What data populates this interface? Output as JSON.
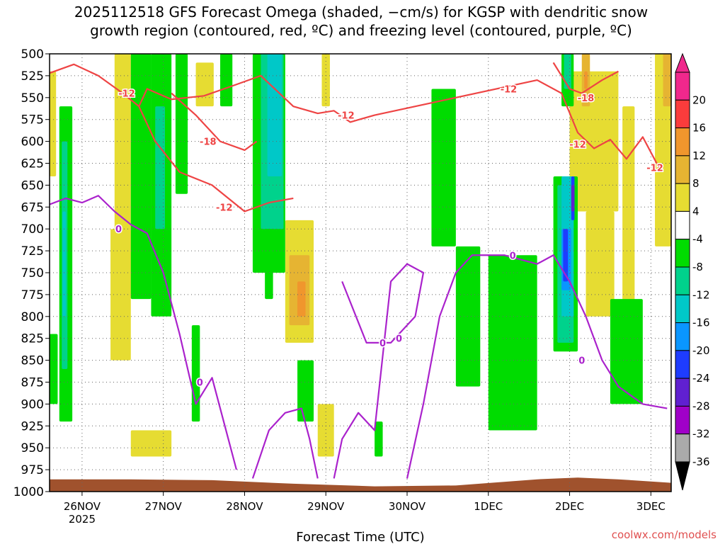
{
  "title_lines": [
    "2025112518 GFS Forecast Omega (shaded, −cm/s) for KGSP with dendritic snow",
    "growth region (contoured, red, ºC) and freezing level (contoured, purple, ºC)"
  ],
  "credit": "coolwx.com/models",
  "colors": {
    "snow_contour": "#ee4444",
    "freezing_contour": "#aa22cc",
    "terrain": "#a0522d",
    "grid": "#666666"
  },
  "chart_data": {
    "type": "heatmap",
    "title": "2025112518 GFS Forecast Omega (shaded, −cm/s) for KGSP with dendritic snow growth region (contoured, red, ºC) and freezing level (contoured, purple, ºC)",
    "xlabel": "Forecast Time (UTC)",
    "ylabel": "Pressure (hPa)",
    "x_ticks": [
      "26NOV",
      "27NOV",
      "28NOV",
      "29NOV",
      "30NOV",
      "1DEC",
      "2DEC",
      "3DEC"
    ],
    "x_tick_days": [
      0.4,
      1.4,
      2.4,
      3.4,
      4.4,
      5.4,
      6.4,
      7.4
    ],
    "x_year_label": "2025",
    "xlim_days": [
      0,
      7.65
    ],
    "y_ticks": [
      500,
      525,
      550,
      575,
      600,
      625,
      650,
      675,
      700,
      725,
      750,
      775,
      800,
      825,
      850,
      875,
      900,
      925,
      950,
      975,
      1000
    ],
    "ylim": [
      500,
      1000
    ],
    "grid": true,
    "colorbar": {
      "levels": [
        -36,
        -32,
        -28,
        -24,
        -20,
        -16,
        -12,
        -8,
        -4,
        4,
        8,
        12,
        16,
        20
      ],
      "colors": [
        "#aaaaaa",
        "#a000c8",
        "#6020d0",
        "#1e3cff",
        "#0a96ff",
        "#00c8c8",
        "#00d28c",
        "#00dc00",
        "#ffffff",
        "#e6dc32",
        "#e6b432",
        "#f0962d",
        "#fa3c3c",
        "#f0288c"
      ],
      "under_color": "#000000",
      "over_color": "#f0288c"
    },
    "shaded_regions": [
      {
        "band": "4 to 8",
        "t": [
          0.0,
          0.08
        ],
        "p": [
          520,
          640
        ]
      },
      {
        "band": "4 to 8",
        "t": [
          0.8,
          1.0
        ],
        "p": [
          500,
          780
        ]
      },
      {
        "band": "8 to 12",
        "t": [
          0.82,
          0.92
        ],
        "p": [
          700,
          820
        ]
      },
      {
        "band": "4 to 8",
        "t": [
          0.75,
          1.0
        ],
        "p": [
          700,
          850
        ]
      },
      {
        "band": "4 to 8",
        "t": [
          1.0,
          1.5
        ],
        "p": [
          930,
          960
        ]
      },
      {
        "band": "4 to 8",
        "t": [
          1.8,
          2.02
        ],
        "p": [
          510,
          560
        ]
      },
      {
        "band": "4 to 8",
        "t": [
          2.9,
          3.25
        ],
        "p": [
          690,
          830
        ]
      },
      {
        "band": "8 to 12",
        "t": [
          2.95,
          3.2
        ],
        "p": [
          730,
          810
        ]
      },
      {
        "band": "12 to 16",
        "t": [
          3.05,
          3.15
        ],
        "p": [
          760,
          800
        ]
      },
      {
        "band": "4 to 8",
        "t": [
          3.35,
          3.45
        ],
        "p": [
          500,
          560
        ]
      },
      {
        "band": "4 to 8",
        "t": [
          3.3,
          3.5
        ],
        "p": [
          900,
          960
        ]
      },
      {
        "band": "4 to 8",
        "t": [
          6.4,
          7.0
        ],
        "p": [
          520,
          680
        ]
      },
      {
        "band": "8 to 12",
        "t": [
          6.55,
          6.65
        ],
        "p": [
          500,
          560
        ]
      },
      {
        "band": "12 to 16",
        "t": [
          6.58,
          6.62
        ],
        "p": [
          520,
          540
        ]
      },
      {
        "band": "4 to 8",
        "t": [
          6.6,
          6.95
        ],
        "p": [
          680,
          800
        ]
      },
      {
        "band": "4 to 8",
        "t": [
          7.05,
          7.2
        ],
        "p": [
          560,
          820
        ]
      },
      {
        "band": "4 to 8",
        "t": [
          7.45,
          7.65
        ],
        "p": [
          500,
          720
        ]
      },
      {
        "band": "8 to 12",
        "t": [
          7.55,
          7.65
        ],
        "p": [
          500,
          560
        ]
      },
      {
        "band": "-8 to -4",
        "t": [
          0.0,
          0.1
        ],
        "p": [
          820,
          900
        ]
      },
      {
        "band": "-8 to -4",
        "t": [
          0.12,
          0.28
        ],
        "p": [
          560,
          920
        ]
      },
      {
        "band": "-12 to -8",
        "t": [
          0.15,
          0.22
        ],
        "p": [
          600,
          860
        ]
      },
      {
        "band": "-16 to -12",
        "t": [
          0.16,
          0.2
        ],
        "p": [
          680,
          800
        ]
      },
      {
        "band": "-8 to -4",
        "t": [
          1.0,
          1.25
        ],
        "p": [
          500,
          780
        ]
      },
      {
        "band": "-8 to -4",
        "t": [
          1.25,
          1.5
        ],
        "p": [
          500,
          800
        ]
      },
      {
        "band": "-12 to -8",
        "t": [
          1.3,
          1.42
        ],
        "p": [
          560,
          700
        ]
      },
      {
        "band": "-8 to -4",
        "t": [
          1.55,
          1.7
        ],
        "p": [
          500,
          660
        ]
      },
      {
        "band": "-8 to -4",
        "t": [
          1.75,
          1.85
        ],
        "p": [
          810,
          920
        ]
      },
      {
        "band": "-8 to -4",
        "t": [
          2.1,
          2.25
        ],
        "p": [
          500,
          560
        ]
      },
      {
        "band": "-8 to -4",
        "t": [
          2.5,
          2.9
        ],
        "p": [
          500,
          750
        ]
      },
      {
        "band": "-12 to -8",
        "t": [
          2.6,
          2.88
        ],
        "p": [
          500,
          700
        ]
      },
      {
        "band": "-16 to -12",
        "t": [
          2.68,
          2.86
        ],
        "p": [
          500,
          640
        ]
      },
      {
        "band": "-8 to -4",
        "t": [
          2.65,
          2.75
        ],
        "p": [
          700,
          780
        ]
      },
      {
        "band": "-8 to -4",
        "t": [
          3.05,
          3.25
        ],
        "p": [
          850,
          920
        ]
      },
      {
        "band": "-8 to -4",
        "t": [
          4.7,
          5.0
        ],
        "p": [
          540,
          720
        ]
      },
      {
        "band": "-8 to -4",
        "t": [
          5.0,
          5.3
        ],
        "p": [
          720,
          880
        ]
      },
      {
        "band": "-8 to -4",
        "t": [
          4.0,
          4.1
        ],
        "p": [
          920,
          960
        ]
      },
      {
        "band": "-8 to -4",
        "t": [
          5.4,
          6.0
        ],
        "p": [
          730,
          930
        ]
      },
      {
        "band": "-8 to -4",
        "t": [
          6.2,
          6.5
        ],
        "p": [
          640,
          840
        ]
      },
      {
        "band": "-12 to -8",
        "t": [
          6.25,
          6.45
        ],
        "p": [
          650,
          830
        ]
      },
      {
        "band": "-16 to -12",
        "t": [
          6.3,
          6.45
        ],
        "p": [
          640,
          800
        ]
      },
      {
        "band": "-20 to -16",
        "t": [
          6.3,
          6.42
        ],
        "p": [
          700,
          770
        ]
      },
      {
        "band": "-24 to -20",
        "t": [
          6.32,
          6.38
        ],
        "p": [
          700,
          760
        ]
      },
      {
        "band": "-24 to -20",
        "t": [
          6.42,
          6.46
        ],
        "p": [
          640,
          690
        ]
      },
      {
        "band": "-28 to -24",
        "t": [
          6.42,
          6.46
        ],
        "p": [
          650,
          680
        ]
      },
      {
        "band": "-8 to -4",
        "t": [
          6.3,
          6.45
        ],
        "p": [
          500,
          560
        ]
      },
      {
        "band": "-12 to -8",
        "t": [
          6.33,
          6.42
        ],
        "p": [
          500,
          540
        ]
      },
      {
        "band": "-8 to -4",
        "t": [
          6.9,
          7.3
        ],
        "p": [
          780,
          900
        ]
      }
    ],
    "snow_growth_contours": [
      {
        "label": "-12",
        "t": [
          0,
          0.3,
          0.6,
          0.9,
          1.1,
          1.2,
          1.5,
          1.9,
          2.3,
          2.6,
          3.0,
          3.3,
          3.5,
          3.7,
          4.0,
          4.5,
          5.0,
          5.5,
          6.0,
          6.3,
          6.5,
          6.7,
          6.9,
          7.1,
          7.3,
          7.5
        ],
        "p": [
          522,
          512,
          525,
          545,
          560,
          540,
          552,
          548,
          535,
          525,
          560,
          568,
          565,
          578,
          570,
          560,
          550,
          540,
          530,
          545,
          590,
          608,
          598,
          620,
          595,
          630
        ]
      },
      {
        "label": "-18",
        "t": [
          1.5,
          1.8,
          2.1,
          2.4,
          2.55
        ],
        "p": [
          545,
          570,
          600,
          610,
          600
        ]
      },
      {
        "label": "-12",
        "t": [
          1.1,
          1.3,
          1.6,
          2.0,
          2.4,
          2.7,
          3.0
        ],
        "p": [
          560,
          600,
          635,
          650,
          680,
          670,
          665
        ]
      },
      {
        "label": "-18",
        "t": [
          6.2,
          6.4,
          6.55,
          6.8,
          7.0
        ],
        "p": [
          510,
          540,
          545,
          530,
          520
        ]
      }
    ],
    "freezing_level_contours": [
      {
        "label": "0",
        "t": [
          0,
          0.2,
          0.4,
          0.6,
          0.8,
          1.0,
          1.2,
          1.4,
          1.6,
          1.8,
          2.0,
          2.2,
          2.3
        ],
        "p": [
          672,
          665,
          670,
          662,
          680,
          695,
          705,
          750,
          820,
          900,
          870,
          940,
          975
        ]
      },
      {
        "label": "0",
        "t": [
          2.5,
          2.7,
          2.9,
          3.1,
          3.2,
          3.3
        ],
        "p": [
          985,
          930,
          910,
          905,
          940,
          985
        ]
      },
      {
        "label": "0",
        "t": [
          3.5,
          3.6,
          3.8,
          4.0,
          4.2,
          4.4,
          4.6,
          4.5,
          4.2,
          3.9,
          3.6
        ],
        "p": [
          985,
          940,
          910,
          930,
          760,
          740,
          750,
          800,
          830,
          830,
          760
        ]
      },
      {
        "label": "0",
        "t": [
          4.4,
          4.6,
          4.8,
          5.0,
          5.2,
          5.6,
          6.0,
          6.2,
          6.4,
          6.6,
          6.8,
          7.0,
          7.3,
          7.6
        ],
        "p": [
          985,
          900,
          800,
          750,
          730,
          730,
          740,
          730,
          760,
          800,
          850,
          880,
          900,
          905
        ]
      }
    ],
    "contour_labels": [
      {
        "text": "-12",
        "color": "red",
        "t": 0.95,
        "p": 545
      },
      {
        "text": "-18",
        "color": "red",
        "t": 1.95,
        "p": 600
      },
      {
        "text": "-12",
        "color": "red",
        "t": 2.15,
        "p": 675
      },
      {
        "text": "-12",
        "color": "red",
        "t": 3.65,
        "p": 570
      },
      {
        "text": "-12",
        "color": "red",
        "t": 5.65,
        "p": 540
      },
      {
        "text": "-18",
        "color": "red",
        "t": 6.6,
        "p": 550
      },
      {
        "text": "-12",
        "color": "red",
        "t": 6.5,
        "p": 603
      },
      {
        "text": "-12",
        "color": "red",
        "t": 7.45,
        "p": 630
      },
      {
        "text": "0",
        "color": "purple",
        "t": 0.85,
        "p": 700
      },
      {
        "text": "0",
        "color": "purple",
        "t": 1.85,
        "p": 875
      },
      {
        "text": "0",
        "color": "purple",
        "t": 4.1,
        "p": 830
      },
      {
        "text": "0",
        "color": "purple",
        "t": 4.3,
        "p": 825
      },
      {
        "text": "0",
        "color": "purple",
        "t": 5.7,
        "p": 730
      },
      {
        "text": "0",
        "color": "purple",
        "t": 6.55,
        "p": 850
      }
    ],
    "terrain_surface": {
      "t": [
        0,
        1.0,
        2.0,
        3.0,
        4.0,
        5.0,
        6.0,
        6.5,
        7.0,
        7.65
      ],
      "p": [
        986,
        986,
        987,
        991,
        994,
        993,
        986,
        984,
        986,
        990
      ]
    }
  }
}
